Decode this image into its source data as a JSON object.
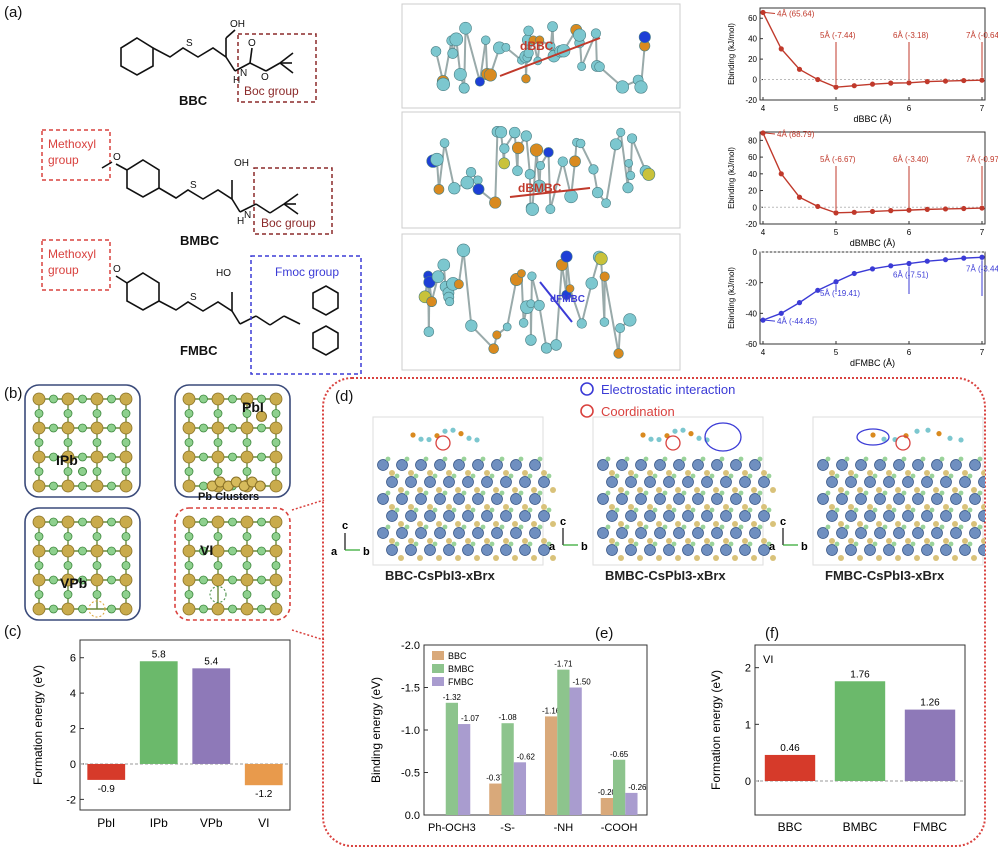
{
  "panel_labels": {
    "a": "(a)",
    "b": "(b)",
    "c": "(c)",
    "d": "(d)",
    "e": "(e)",
    "f": "(f)"
  },
  "molecules": {
    "bbc": {
      "name": "BBC",
      "boc": "Boc group",
      "acid": "OH"
    },
    "bmbc": {
      "name": "BMBC",
      "methoxyl": [
        "Methoxyl",
        "group"
      ],
      "boc": "Boc group",
      "acid": "OH"
    },
    "fmbc": {
      "name": "FMBC",
      "methoxyl": [
        "Methoxyl",
        "group"
      ],
      "fmoc": "Fmoc group",
      "acid": "HO"
    }
  },
  "distance_labels": {
    "bbc": "dBBC",
    "bmbc": "dBMBC",
    "fmbc": "dFMBC"
  },
  "colors": {
    "red": "#c0392b",
    "brick": "#b5443b",
    "blue": "#3b3bd6",
    "gold": "#b89b48",
    "green": "#5aa55a",
    "dashred": "#d9423f",
    "frame": "#3a4a7a"
  },
  "defects": {
    "ipb": "IPb",
    "pbi": "PbI",
    "clusters": "Pb Clusters",
    "vpb": "VPb",
    "vi": "VI"
  },
  "panel_d": {
    "legend": [
      "Electrostatic interaction",
      "Coordination"
    ],
    "titles": [
      "BBC-CsPbI3-xBrx",
      "BMBC-CsPbI3-xBrx",
      "FMBC-CsPbI3-xBrx"
    ],
    "axis": {
      "c": "c",
      "a": "a",
      "b": "b"
    }
  },
  "chart_data": [
    {
      "id": "a-bbc",
      "type": "line",
      "xlabel": "dBBC (Å)",
      "ylabel": "Ebinding (kJ/mol)",
      "xlim": [
        4,
        7
      ],
      "ylim": [
        -20,
        70
      ],
      "yticks": [
        60,
        40,
        20,
        0,
        -20
      ],
      "xticks": [
        4,
        5,
        6,
        7
      ],
      "color": "#c0392b",
      "x": [
        4.0,
        4.25,
        4.5,
        4.75,
        5.0,
        5.25,
        5.5,
        5.75,
        6.0,
        6.25,
        6.5,
        6.75,
        7.0
      ],
      "y": [
        65.64,
        30,
        10,
        0,
        -7.44,
        -6,
        -4.5,
        -3.5,
        -3.18,
        -2,
        -1.5,
        -1,
        -0.64
      ],
      "annotations": [
        {
          "x": 4,
          "y": 65.64,
          "text": "4Å (65.64)"
        },
        {
          "x": 5,
          "y": -7.44,
          "text": "5Å (-7.44)"
        },
        {
          "x": 6,
          "y": -3.18,
          "text": "6Å (-3.18)"
        },
        {
          "x": 7,
          "y": -0.64,
          "text": "7Å (-0.64)"
        }
      ]
    },
    {
      "id": "a-bmbc",
      "type": "line",
      "xlabel": "dBMBC (Å)",
      "ylabel": "Ebinding (kJ/mol)",
      "xlim": [
        4,
        7
      ],
      "ylim": [
        -20,
        90
      ],
      "yticks": [
        80,
        60,
        40,
        20,
        0,
        -20
      ],
      "xticks": [
        4,
        5,
        6,
        7
      ],
      "color": "#c0392b",
      "x": [
        4.0,
        4.25,
        4.5,
        4.75,
        5.0,
        5.25,
        5.5,
        5.75,
        6.0,
        6.25,
        6.5,
        6.75,
        7.0
      ],
      "y": [
        88.79,
        40,
        12,
        1,
        -6.67,
        -6,
        -5,
        -4,
        -3.4,
        -2.5,
        -2,
        -1.5,
        -0.97
      ],
      "annotations": [
        {
          "x": 4,
          "y": 88.79,
          "text": "4Å (88.79)"
        },
        {
          "x": 5,
          "y": -6.67,
          "text": "5Å (-6.67)"
        },
        {
          "x": 6,
          "y": -3.4,
          "text": "6Å (-3.40)"
        },
        {
          "x": 7,
          "y": -0.97,
          "text": "7Å (-0.97)"
        }
      ]
    },
    {
      "id": "a-fmbc",
      "type": "line",
      "xlabel": "dFMBC (Å)",
      "ylabel": "Ebinding (kJ/mol)",
      "xlim": [
        4,
        7
      ],
      "ylim": [
        -60,
        0
      ],
      "yticks": [
        0,
        -20,
        -40,
        -60
      ],
      "xticks": [
        4,
        5,
        6,
        7
      ],
      "color": "#3b3bd6",
      "x": [
        4.0,
        4.25,
        4.5,
        4.75,
        5.0,
        5.25,
        5.5,
        5.75,
        6.0,
        6.25,
        6.5,
        6.75,
        7.0
      ],
      "y": [
        -44.45,
        -40,
        -33,
        -25,
        -19.41,
        -14,
        -11,
        -9,
        -7.51,
        -6,
        -5,
        -4,
        -3.44
      ],
      "annotations": [
        {
          "x": 4,
          "y": -44.45,
          "text": "4Å (-44.45)"
        },
        {
          "x": 5,
          "y": -19.41,
          "text": "5Å (-19.41)"
        },
        {
          "x": 6,
          "y": -7.51,
          "text": "6Å (-7.51)"
        },
        {
          "x": 7,
          "y": -3.44,
          "text": "7Å (-3.44)"
        }
      ]
    },
    {
      "id": "c",
      "type": "bar",
      "ylabel": "Formation energy (eV)",
      "categories": [
        "PbI",
        "IPb",
        "VPb",
        "VI"
      ],
      "values": [
        -0.9,
        5.8,
        5.4,
        -1.2
      ],
      "labels": [
        "-0.9",
        "5.8",
        "5.4",
        "-1.2"
      ],
      "colors": [
        "#d63a2a",
        "#6bb96b",
        "#8e79b8",
        "#e89a4c"
      ],
      "ylim": [
        -2.6,
        7
      ],
      "yticks": [
        6,
        4,
        2,
        0,
        -2
      ]
    },
    {
      "id": "e",
      "type": "bar",
      "ylabel": "Binding energy (eV)",
      "categories": [
        "Ph-OCH3",
        "-S-",
        "-NH",
        "-COOH"
      ],
      "series": [
        {
          "name": "BBC",
          "values": [
            0,
            -0.37,
            -1.16,
            -0.2
          ],
          "labels": [
            "",
            "-0.37",
            "-1.16",
            "-0.20"
          ],
          "color": "#d9a97a"
        },
        {
          "name": "BMBC",
          "values": [
            -1.32,
            -1.08,
            -1.71,
            -0.65
          ],
          "labels": [
            "-1.32",
            "-1.08",
            "-1.71",
            "-0.65"
          ],
          "color": "#8dc48d"
        },
        {
          "name": "FMBC",
          "values": [
            -1.07,
            -0.62,
            -1.5,
            -0.26
          ],
          "labels": [
            "-1.07",
            "-0.62",
            "-1.50",
            "-0.26"
          ],
          "color": "#a99ccf"
        }
      ],
      "ylim": [
        0,
        -2.0
      ],
      "yticks": [
        "-2.0",
        "-1.5",
        "-1.0",
        "-0.5",
        "0.0"
      ]
    },
    {
      "id": "f",
      "type": "bar",
      "ylabel": "Formation energy (eV)",
      "inset": "VI",
      "categories": [
        "BBC",
        "BMBC",
        "FMBC"
      ],
      "values": [
        0.46,
        1.76,
        1.26
      ],
      "labels": [
        "0.46",
        "1.76",
        "1.26"
      ],
      "colors": [
        "#d63a2a",
        "#6bb96b",
        "#8e79b8"
      ],
      "ylim": [
        -0.6,
        2.4
      ],
      "yticks": [
        2,
        1,
        0
      ]
    }
  ]
}
